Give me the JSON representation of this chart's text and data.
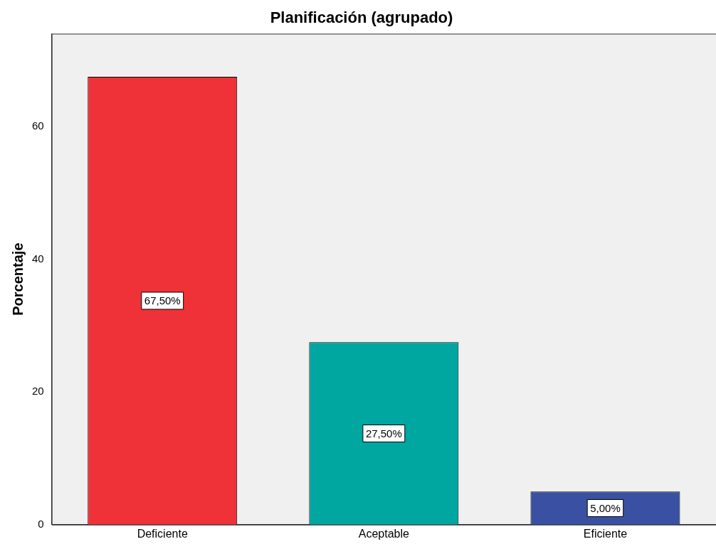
{
  "chart_data": {
    "type": "bar",
    "title": "Planificación (agrupado)",
    "ylabel": "Porcentaje",
    "categories": [
      "Deficiente",
      "Aceptable",
      "Eficiente"
    ],
    "values": [
      67.5,
      27.5,
      5.0
    ],
    "colors": [
      "#ef3237",
      "#00a6a0",
      "#3a51a3"
    ],
    "value_labels": [
      "67,50%",
      "27,50%",
      "5,00%"
    ],
    "ylim": [
      0,
      74
    ],
    "yticks": [
      0,
      20,
      40,
      60
    ],
    "grid": false,
    "legend": false
  }
}
